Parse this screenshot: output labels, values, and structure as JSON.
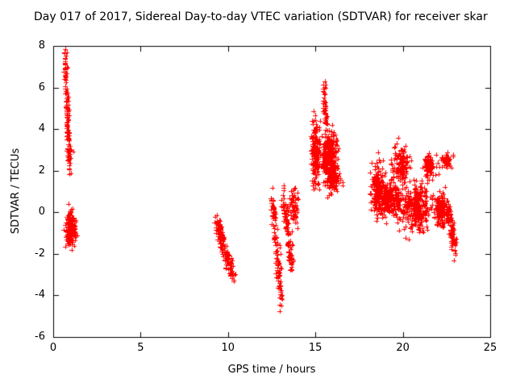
{
  "chart_data": {
    "type": "scatter",
    "title": "Day 017 of 2017, Sidereal Day-to-day VTEC variation (SDTVAR) for receiver skar",
    "xlabel": "GPS time / hours",
    "ylabel": "SDTVAR / TECUs",
    "xlim": [
      0,
      25
    ],
    "ylim": [
      -6,
      8
    ],
    "xticks": [
      0,
      5,
      10,
      15,
      20,
      25
    ],
    "yticks": [
      -6,
      -4,
      -2,
      0,
      2,
      4,
      6,
      8
    ],
    "grid": false,
    "legend": "none",
    "background": "#ffffff",
    "frame_color": "#000000",
    "marker": {
      "shape": "plus",
      "color": "#ff0000",
      "size": 7
    },
    "seed": 42,
    "clusters": [
      {
        "kind": "streak",
        "n": 130,
        "x0": 0.68,
        "y0": 7.6,
        "x1": 0.95,
        "y1": 2.15,
        "jx": 0.05,
        "jy": 0.25
      },
      {
        "kind": "blob",
        "n": 170,
        "cx": 1.0,
        "cy": -0.85,
        "sx": 0.13,
        "sy": 0.45
      },
      {
        "kind": "streak",
        "n": 150,
        "x0": 9.35,
        "y0": -0.5,
        "x1": 10.3,
        "y1": -3.2,
        "jx": 0.08,
        "jy": 0.22
      },
      {
        "kind": "streak",
        "n": 110,
        "x0": 12.55,
        "y0": 0.5,
        "x1": 13.05,
        "y1": -4.35,
        "jx": 0.07,
        "jy": 0.3
      },
      {
        "kind": "streak",
        "n": 100,
        "x0": 13.15,
        "y0": 0.9,
        "x1": 13.65,
        "y1": -2.6,
        "jx": 0.07,
        "jy": 0.28
      },
      {
        "kind": "blob",
        "n": 60,
        "cx": 13.8,
        "cy": 0.25,
        "sx": 0.12,
        "sy": 0.5
      },
      {
        "kind": "blob",
        "n": 160,
        "cx": 15.0,
        "cy": 2.9,
        "sx": 0.12,
        "sy": 0.75
      },
      {
        "kind": "streak",
        "n": 45,
        "x0": 15.5,
        "y0": 6.0,
        "x1": 15.62,
        "y1": 4.2,
        "jx": 0.05,
        "jy": 0.25
      },
      {
        "kind": "blob",
        "n": 280,
        "cx": 15.8,
        "cy": 2.6,
        "sx": 0.22,
        "sy": 0.62
      },
      {
        "kind": "blob",
        "n": 90,
        "cx": 16.0,
        "cy": 1.6,
        "sx": 0.2,
        "sy": 0.28
      },
      {
        "kind": "blob",
        "n": 180,
        "cx": 18.6,
        "cy": 1.1,
        "sx": 0.2,
        "sy": 0.55
      },
      {
        "kind": "blob",
        "n": 220,
        "cx": 19.3,
        "cy": 0.6,
        "sx": 0.35,
        "sy": 0.38
      },
      {
        "kind": "blob",
        "n": 130,
        "cx": 19.9,
        "cy": 2.3,
        "sx": 0.24,
        "sy": 0.45
      },
      {
        "kind": "blob",
        "n": 260,
        "cx": 20.8,
        "cy": 0.2,
        "sx": 0.38,
        "sy": 0.55
      },
      {
        "kind": "blob",
        "n": 90,
        "cx": 21.5,
        "cy": 2.2,
        "sx": 0.17,
        "sy": 0.27
      },
      {
        "kind": "blob",
        "n": 130,
        "cx": 22.2,
        "cy": 0.1,
        "sx": 0.2,
        "sy": 0.4
      },
      {
        "kind": "blob",
        "n": 55,
        "cx": 22.5,
        "cy": 2.45,
        "sx": 0.16,
        "sy": 0.14
      },
      {
        "kind": "streak",
        "n": 85,
        "x0": 22.55,
        "y0": 0.35,
        "x1": 23.0,
        "y1": -2.05,
        "jx": 0.08,
        "jy": 0.25
      }
    ]
  }
}
